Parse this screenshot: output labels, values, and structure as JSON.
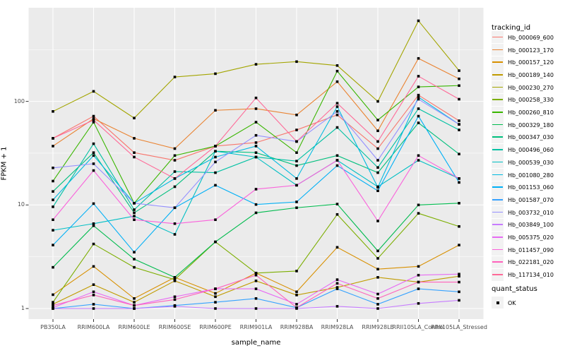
{
  "chart_data": {
    "type": "line",
    "xlabel": "sample_name",
    "ylabel": "FPKM + 1",
    "y_scale": "log10",
    "grid": true,
    "legend_position": "right",
    "x_categories": [
      "PB350LA",
      "RRIM600LA",
      "RRIM600LE",
      "RRIM600SE",
      "RRIM600PE",
      "RRIM901LA",
      "RRIM928BA",
      "RRIM928LA",
      "RRIM928LE",
      "RRII105LA_Control",
      "RRII105LA_Stressed"
    ],
    "y_ticks": [
      {
        "value": 1,
        "label": "1"
      },
      {
        "value": 10,
        "label": "10"
      },
      {
        "value": 100,
        "label": "100"
      }
    ],
    "ylim": [
      0.9,
      700
    ],
    "legend_title": "tracking_id",
    "legend2_title": "quant_status",
    "legend2_items": [
      {
        "label": "OK",
        "marker": "point",
        "color": "#000000"
      }
    ],
    "series": [
      {
        "name": "Hb_000069_600",
        "color": "#F8766D",
        "values": [
          44,
          72,
          32,
          27,
          37,
          40,
          53,
          74,
          35,
          115,
          65
        ]
      },
      {
        "name": "Hb_000123_170",
        "color": "#EA8331",
        "values": [
          37,
          68,
          44,
          35,
          82,
          85,
          74,
          155,
          52,
          260,
          165
        ]
      },
      {
        "name": "Hb_000157_120",
        "color": "#D89000",
        "values": [
          1.36,
          2.55,
          1.25,
          2.0,
          1.4,
          2.2,
          1.45,
          3.9,
          2.4,
          2.55,
          4.1
        ]
      },
      {
        "name": "Hb_000189_140",
        "color": "#C09B00",
        "values": [
          1.1,
          1.7,
          1.15,
          1.85,
          1.3,
          1.85,
          1.35,
          1.6,
          2.0,
          1.8,
          2.05
        ]
      },
      {
        "name": "Hb_000230_270",
        "color": "#A3A500",
        "values": [
          80,
          125,
          69,
          172,
          185,
          228,
          242,
          222,
          100,
          600,
          198
        ]
      },
      {
        "name": "Hb_000258_330",
        "color": "#7CAE00",
        "values": [
          1.15,
          4.2,
          2.5,
          1.9,
          4.4,
          2.2,
          2.3,
          8.1,
          3.05,
          8.3,
          6.2
        ]
      },
      {
        "name": "Hb_000260_810",
        "color": "#39B600",
        "values": [
          17,
          63,
          10.4,
          30,
          37,
          63,
          32,
          196,
          66,
          138,
          142
        ]
      },
      {
        "name": "Hb_000329_180",
        "color": "#00BB4E",
        "values": [
          2.5,
          6.3,
          3.0,
          2.0,
          4.4,
          8.4,
          9.4,
          10.2,
          3.6,
          10.0,
          10.4
        ]
      },
      {
        "name": "Hb_000347_030",
        "color": "#00BF7D",
        "values": [
          13.5,
          32,
          8.4,
          15,
          33,
          32,
          24,
          30,
          20.5,
          62,
          31
        ]
      },
      {
        "name": "Hb_000496_060",
        "color": "#00C1A3",
        "values": [
          9.6,
          39,
          9.0,
          21,
          20.5,
          29,
          26.5,
          56,
          23,
          85,
          53
        ]
      },
      {
        "name": "Hb_000539_030",
        "color": "#00BFC4",
        "values": [
          5.7,
          6.6,
          7.8,
          5.2,
          33,
          29,
          15.5,
          27,
          15,
          27,
          18
        ]
      },
      {
        "name": "Hb_001080_280",
        "color": "#00BAE0",
        "values": [
          11.2,
          30,
          10.4,
          18,
          29,
          37,
          18,
          89,
          14.8,
          110,
          60
        ]
      },
      {
        "name": "Hb_001153_060",
        "color": "#00B0F6",
        "values": [
          4.1,
          10.3,
          3.5,
          9.4,
          15.5,
          10.1,
          10.7,
          24,
          13.7,
          72,
          16.5
        ]
      },
      {
        "name": "Hb_001587_070",
        "color": "#35A2FF",
        "values": [
          1.0,
          1.1,
          1.0,
          1.07,
          1.15,
          1.25,
          1.02,
          1.55,
          1.1,
          1.55,
          1.45
        ]
      },
      {
        "name": "Hb_003732_010",
        "color": "#9590FF",
        "values": [
          22.8,
          25,
          10.4,
          9.4,
          26,
          47,
          41,
          80,
          27,
          105,
          60
        ]
      },
      {
        "name": "Hb_003849_100",
        "color": "#C77CFF",
        "values": [
          1.0,
          1.0,
          1.0,
          1.05,
          1.0,
          1.0,
          1.0,
          1.05,
          1.0,
          1.12,
          1.2
        ]
      },
      {
        "name": "Hb_005375_020",
        "color": "#E76BF3",
        "values": [
          1.02,
          1.45,
          1.07,
          1.3,
          1.55,
          1.55,
          1.1,
          1.9,
          1.38,
          2.1,
          2.15
        ]
      },
      {
        "name": "Hb_011457_090",
        "color": "#FA62DB",
        "values": [
          7.2,
          21.5,
          7.2,
          6.6,
          7.2,
          14.2,
          15.5,
          27,
          7.0,
          30,
          18
        ]
      },
      {
        "name": "Hb_022181_020",
        "color": "#FF62BC",
        "values": [
          1.07,
          1.35,
          1.07,
          1.22,
          1.55,
          2.1,
          1.02,
          1.75,
          1.25,
          1.8,
          1.8
        ]
      },
      {
        "name": "Hb_117134_010",
        "color": "#FF6A98",
        "values": [
          44,
          66,
          29,
          18,
          37,
          108,
          41,
          96,
          41,
          175,
          105
        ]
      }
    ]
  },
  "style": {
    "panel_background": "#EBEBEB",
    "grid_color": "#FFFFFF",
    "point_color": "#000000",
    "tick_color": "#333333",
    "tick_label_color": "#4D4D4D",
    "legend_key_background": "#F2F2F2"
  }
}
